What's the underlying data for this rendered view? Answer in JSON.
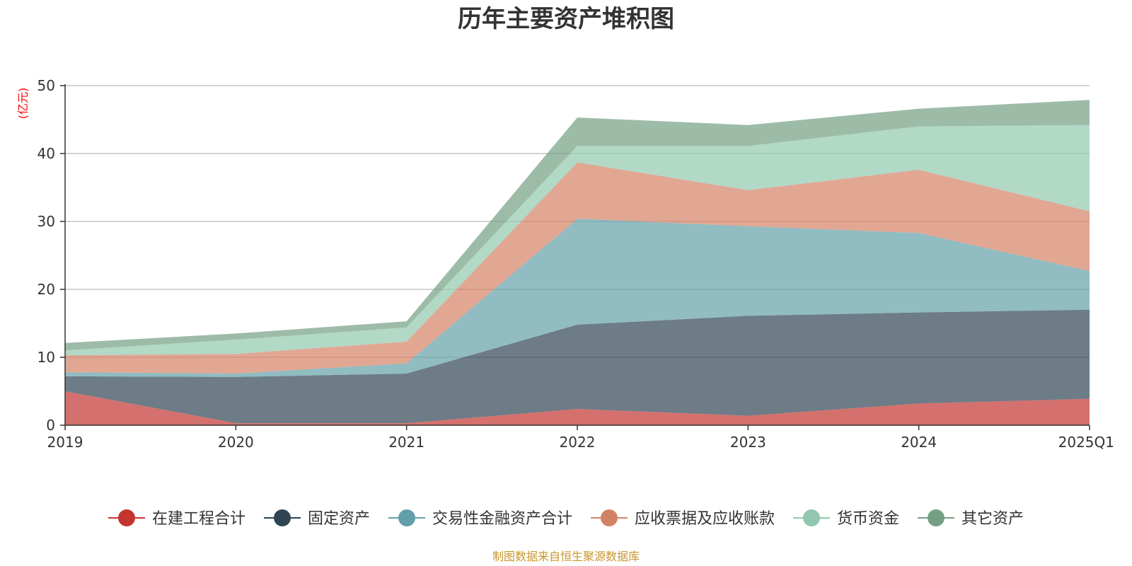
{
  "chart_data": {
    "type": "area",
    "stacked": true,
    "title": "历年主要资产堆积图",
    "unit_label": "(亿元)",
    "x": [
      "2019",
      "2020",
      "2021",
      "2022",
      "2023",
      "2024",
      "2025Q1"
    ],
    "ylim": [
      0,
      50
    ],
    "yticks": [
      0,
      10,
      20,
      30,
      40,
      50
    ],
    "grid": true,
    "legend_position": "bottom",
    "series": [
      {
        "name": "在建工程合计",
        "color": "#c23531",
        "values": [
          5.0,
          0.3,
          0.3,
          2.4,
          1.4,
          3.2,
          3.9
        ]
      },
      {
        "name": "固定资产",
        "color": "#2f4554",
        "values": [
          2.2,
          6.8,
          7.3,
          12.4,
          14.7,
          13.4,
          13.1
        ]
      },
      {
        "name": "交易性金融资产合计",
        "color": "#61a0a8",
        "values": [
          0.6,
          0.5,
          1.5,
          15.6,
          13.2,
          11.7,
          5.7
        ]
      },
      {
        "name": "应收票据及应收账款",
        "color": "#d48265",
        "values": [
          2.5,
          2.9,
          3.2,
          8.3,
          5.3,
          9.3,
          8.8
        ]
      },
      {
        "name": "货币资金",
        "color": "#91c7ae",
        "values": [
          0.7,
          2.1,
          2.1,
          2.4,
          6.5,
          6.4,
          12.7
        ]
      },
      {
        "name": "其它资产",
        "color": "#749f83",
        "values": [
          1.1,
          0.9,
          0.9,
          4.2,
          3.1,
          2.6,
          3.7
        ]
      }
    ]
  },
  "footer": {
    "source": "制图数据来自恒生聚源数据库"
  }
}
